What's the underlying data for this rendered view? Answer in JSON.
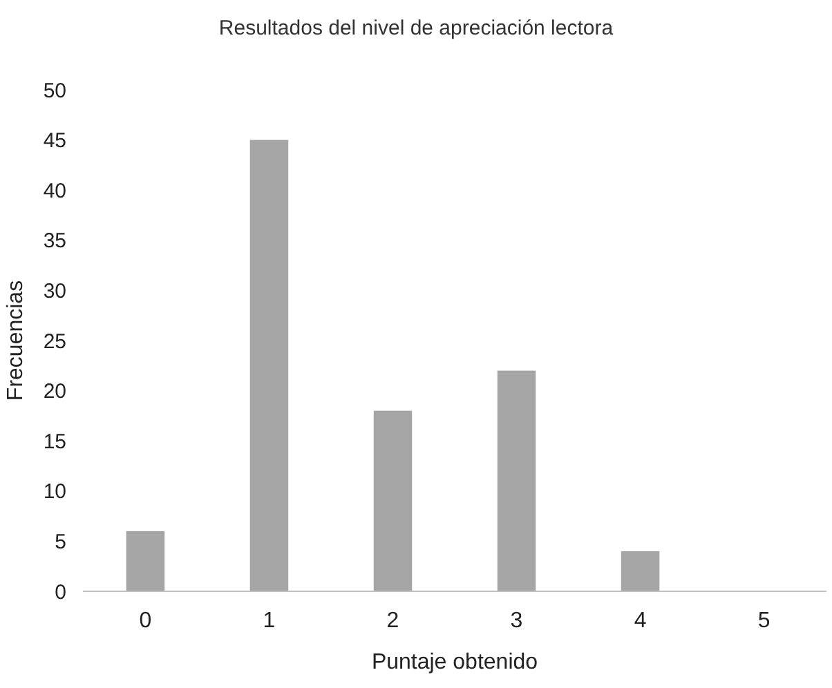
{
  "chart_data": {
    "type": "bar",
    "title": "Resultados del nivel de apreciación lectora",
    "xlabel": "Puntaje obtenido",
    "ylabel": "Frecuencias",
    "categories": [
      "0",
      "1",
      "2",
      "3",
      "4",
      "5"
    ],
    "values": [
      6,
      45,
      18,
      22,
      4,
      0
    ],
    "color": "#a5a5a5",
    "ylim": [
      0,
      50
    ],
    "yticks": [
      0,
      5,
      10,
      15,
      20,
      25,
      30,
      35,
      40,
      45,
      50
    ],
    "grid": false
  }
}
